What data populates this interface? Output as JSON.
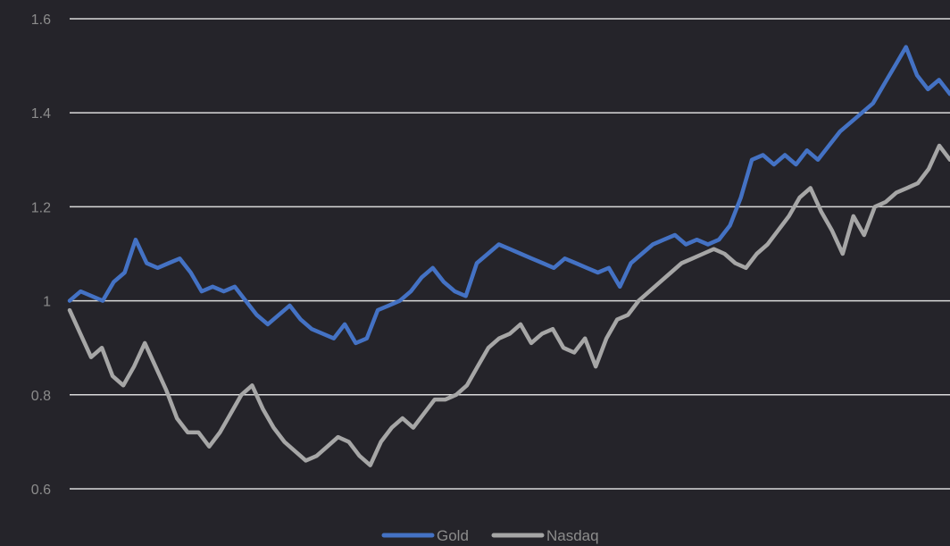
{
  "chart_data": {
    "type": "line",
    "title": "",
    "xlabel": "",
    "ylabel": "",
    "ylim": [
      0.6,
      1.6
    ],
    "yticks": [
      "0.6",
      "0.8",
      "1",
      "1.2",
      "1.4",
      "1.6"
    ],
    "grid": true,
    "legend": "bottom",
    "series": [
      {
        "name": "Gold",
        "color": "#4472c4",
        "values": [
          1.0,
          1.02,
          1.01,
          1.0,
          1.04,
          1.06,
          1.13,
          1.08,
          1.07,
          1.08,
          1.09,
          1.06,
          1.02,
          1.03,
          1.02,
          1.03,
          1.0,
          0.97,
          0.95,
          0.97,
          0.99,
          0.96,
          0.94,
          0.93,
          0.92,
          0.95,
          0.91,
          0.92,
          0.98,
          0.99,
          1.0,
          1.02,
          1.05,
          1.07,
          1.04,
          1.02,
          1.01,
          1.08,
          1.1,
          1.12,
          1.11,
          1.1,
          1.09,
          1.08,
          1.07,
          1.09,
          1.08,
          1.07,
          1.06,
          1.07,
          1.03,
          1.08,
          1.1,
          1.12,
          1.13,
          1.14,
          1.12,
          1.13,
          1.12,
          1.13,
          1.16,
          1.22,
          1.3,
          1.31,
          1.29,
          1.31,
          1.29,
          1.32,
          1.3,
          1.33,
          1.36,
          1.38,
          1.4,
          1.42,
          1.46,
          1.5,
          1.54,
          1.48,
          1.45,
          1.47,
          1.44
        ]
      },
      {
        "name": "Nasdaq",
        "color": "#a6a6a6",
        "values": [
          0.98,
          0.93,
          0.88,
          0.9,
          0.84,
          0.82,
          0.86,
          0.91,
          0.86,
          0.81,
          0.75,
          0.72,
          0.72,
          0.69,
          0.72,
          0.76,
          0.8,
          0.82,
          0.77,
          0.73,
          0.7,
          0.68,
          0.66,
          0.67,
          0.69,
          0.71,
          0.7,
          0.67,
          0.65,
          0.7,
          0.73,
          0.75,
          0.73,
          0.76,
          0.79,
          0.79,
          0.8,
          0.82,
          0.86,
          0.9,
          0.92,
          0.93,
          0.95,
          0.91,
          0.93,
          0.94,
          0.9,
          0.89,
          0.92,
          0.86,
          0.92,
          0.96,
          0.97,
          1.0,
          1.02,
          1.04,
          1.06,
          1.08,
          1.09,
          1.1,
          1.11,
          1.1,
          1.08,
          1.07,
          1.1,
          1.12,
          1.15,
          1.18,
          1.22,
          1.24,
          1.19,
          1.15,
          1.1,
          1.18,
          1.14,
          1.2,
          1.21,
          1.23,
          1.24,
          1.25,
          1.28,
          1.33,
          1.3
        ]
      }
    ]
  }
}
